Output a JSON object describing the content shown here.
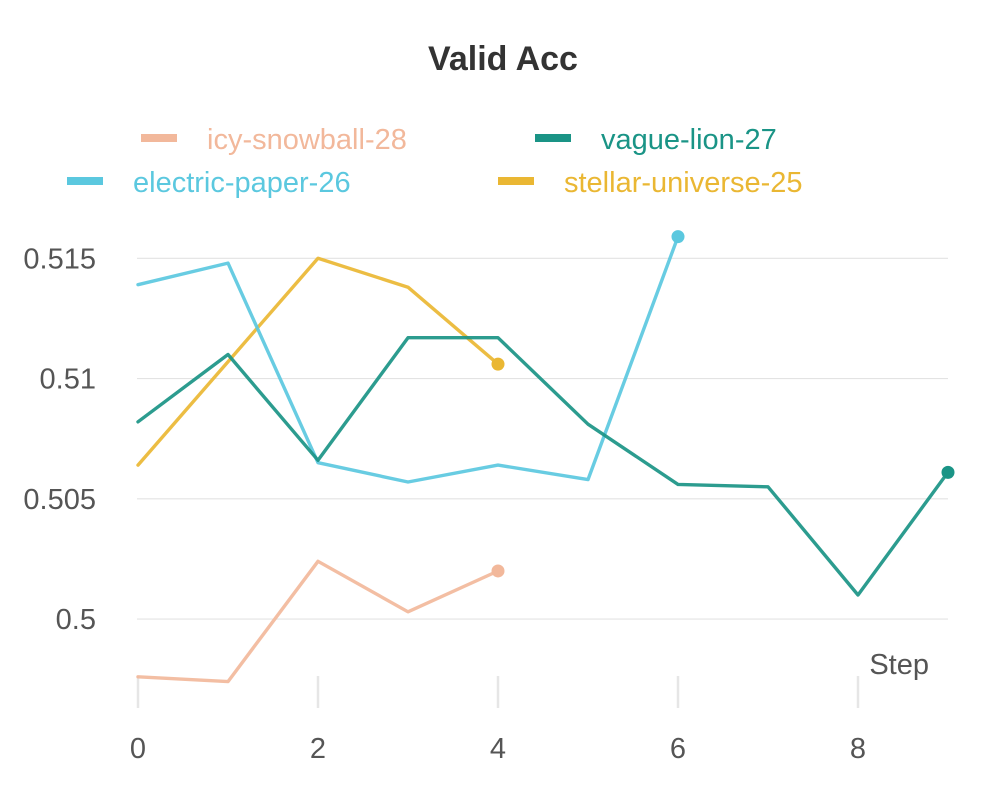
{
  "chart_data": {
    "type": "line",
    "title": "Valid Acc",
    "xlabel": "Step",
    "ylabel": "",
    "xlim": [
      0,
      9
    ],
    "ylim": [
      0.4973,
      0.5168
    ],
    "x_ticks": [
      0,
      2,
      4,
      6,
      8
    ],
    "y_ticks": [
      0.5,
      0.505,
      0.51,
      0.515
    ],
    "y_tick_labels": [
      "0.5",
      "0.505",
      "0.51",
      "0.515"
    ],
    "grid": true,
    "legend_position": "top",
    "series": [
      {
        "name": "icy-snowball-28",
        "color": "#f2b89b",
        "x": [
          0,
          1,
          2,
          3,
          4
        ],
        "y": [
          0.4976,
          0.4974,
          0.5024,
          0.5003,
          0.502
        ]
      },
      {
        "name": "vague-lion-27",
        "color": "#1a9486",
        "x": [
          0,
          1,
          2,
          3,
          4,
          5,
          6,
          7,
          8,
          9
        ],
        "y": [
          0.5082,
          0.511,
          0.5066,
          0.5117,
          0.5117,
          0.5081,
          0.5056,
          0.5055,
          0.501,
          0.5061
        ]
      },
      {
        "name": "electric-paper-26",
        "color": "#5bc8df",
        "x": [
          0,
          1,
          2,
          3,
          4,
          5,
          6
        ],
        "y": [
          0.5139,
          0.5148,
          0.5065,
          0.5057,
          0.5064,
          0.5058,
          0.5159
        ]
      },
      {
        "name": "stellar-universe-25",
        "color": "#eab733",
        "x": [
          0,
          1,
          2,
          3,
          4
        ],
        "y": [
          0.5064,
          0.5107,
          0.515,
          0.5138,
          0.5106
        ]
      }
    ]
  }
}
